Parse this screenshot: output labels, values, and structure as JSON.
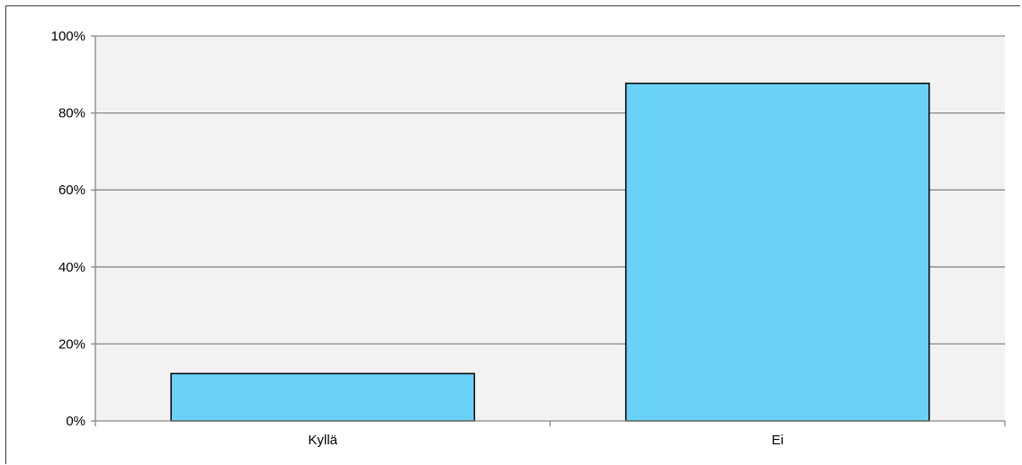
{
  "chart_data": {
    "type": "bar",
    "categories": [
      "Kyllä",
      "Ei"
    ],
    "values": [
      12.3,
      87.7
    ],
    "yticks": [
      "0%",
      "20%",
      "40%",
      "60%",
      "80%",
      "100%"
    ],
    "ylim": [
      0,
      100
    ],
    "grid": true,
    "colors": {
      "bar_fill": "#6ad2f8",
      "bar_stroke": "#000000",
      "plot_bg": "#f2f2f2",
      "grid": "#878787"
    }
  }
}
